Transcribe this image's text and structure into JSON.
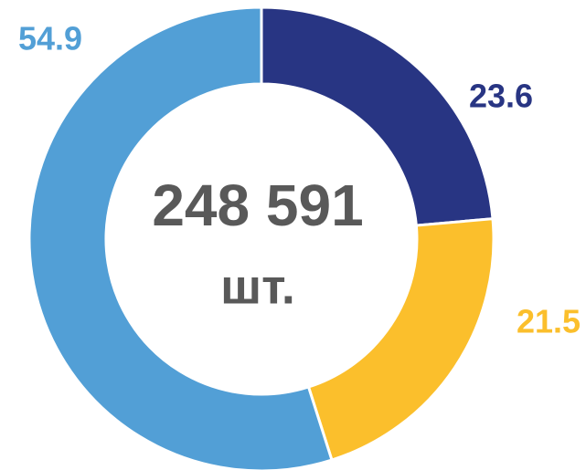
{
  "chart_data": {
    "type": "donut",
    "values": [
      23.6,
      21.5,
      54.9
    ],
    "colors": [
      "#283583",
      "#fbbf2c",
      "#529fd6"
    ],
    "center_label": "248 591",
    "center_sublabel": "шт."
  }
}
